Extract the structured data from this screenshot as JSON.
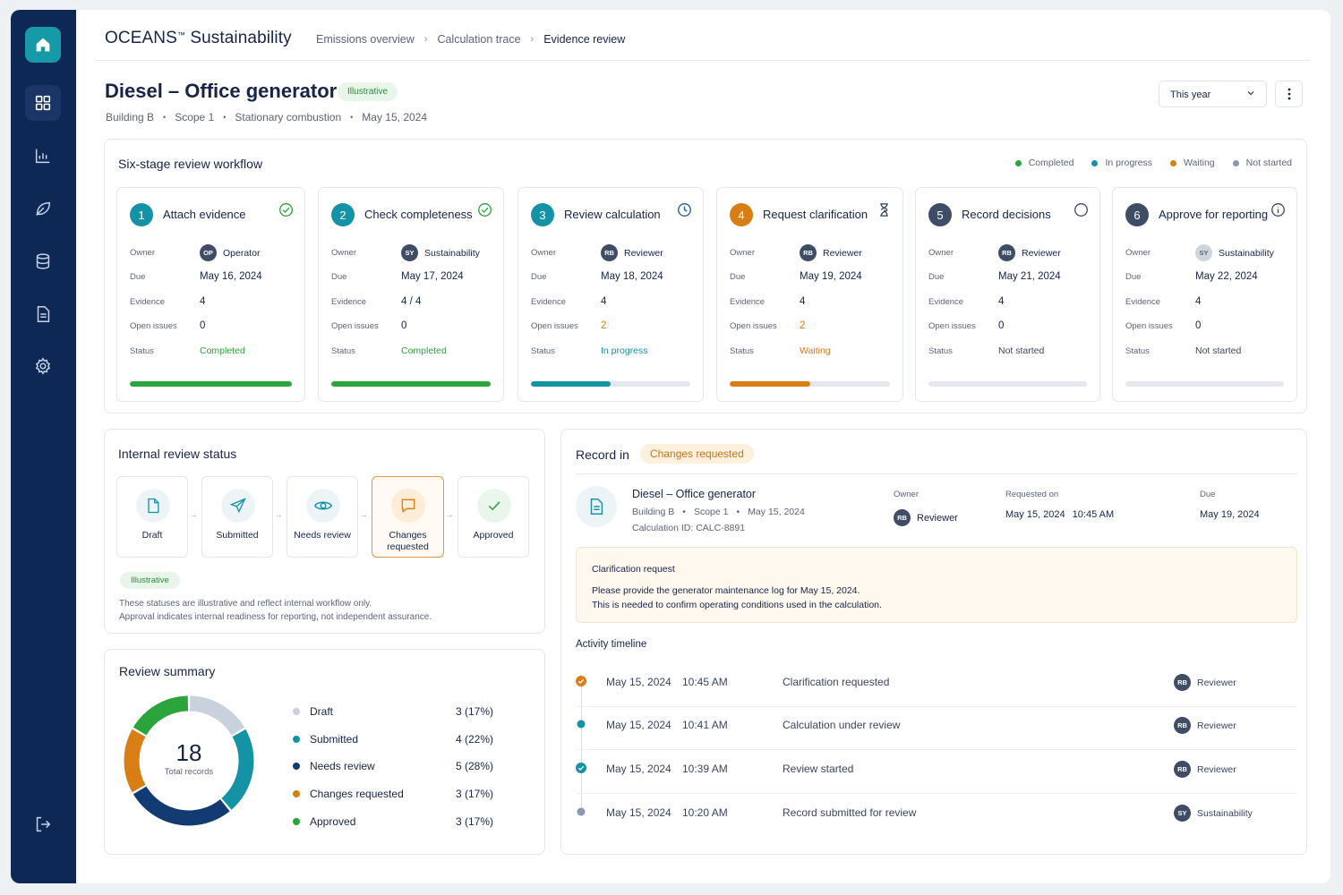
{
  "colors": {
    "completed": "#2ba43b",
    "in_progress": "#1493a6",
    "waiting": "#d97e14",
    "not_started": "#8b97ad",
    "navy": "#0e2856"
  },
  "sidebar": {
    "items": [
      {
        "icon": "home-icon"
      },
      {
        "icon": "grid-icon"
      },
      {
        "icon": "chart-icon"
      },
      {
        "icon": "leaf-icon"
      },
      {
        "icon": "database-icon"
      },
      {
        "icon": "document-icon"
      },
      {
        "icon": "gear-icon"
      },
      {
        "icon": "logout-icon"
      }
    ]
  },
  "header": {
    "brand": "OCEANS",
    "brand_tm": "™",
    "brand_suffix": " Sustainability",
    "breadcrumbs": [
      "Emissions overview",
      "Calculation trace",
      "Evidence review"
    ]
  },
  "page": {
    "title": "Diesel – Office generator",
    "badge": "Illustrative",
    "meta": [
      "Building B",
      "Scope 1",
      "Stationary combustion",
      "May 15, 2024"
    ],
    "period": "This year"
  },
  "workflow": {
    "title": "Six-stage review workflow",
    "legend": [
      {
        "label": "Completed",
        "color": "#2ba43b"
      },
      {
        "label": "In progress",
        "color": "#1493a6"
      },
      {
        "label": "Waiting",
        "color": "#d97e14"
      },
      {
        "label": "Not started",
        "color": "#8b97ad"
      }
    ],
    "field_labels": {
      "owner": "Owner",
      "due": "Due",
      "evidence": "Evidence",
      "issues": "Open issues",
      "status": "Status"
    },
    "stages": [
      {
        "num": "1",
        "name": "Attach evidence",
        "owner_initials": "OP",
        "owner": "Operator",
        "due": "May 16, 2024",
        "evidence": "4",
        "issues": "0",
        "status": "Completed",
        "progress": 1.0
      },
      {
        "num": "2",
        "name": "Check completeness",
        "owner_initials": "SY",
        "owner": "Sustainability",
        "due": "May 17, 2024",
        "evidence": "4 / 4",
        "issues": "0",
        "status": "Completed",
        "progress": 1.0
      },
      {
        "num": "3",
        "name": "Review calculation",
        "owner_initials": "RB",
        "owner": "Reviewer",
        "due": "May 18, 2024",
        "evidence": "4",
        "issues": "2",
        "status": "In progress",
        "progress": 0.5
      },
      {
        "num": "4",
        "name": "Request clarification",
        "owner_initials": "RB",
        "owner": "Reviewer",
        "due": "May 19, 2024",
        "evidence": "4",
        "issues": "2",
        "status": "Waiting",
        "progress": 0.5
      },
      {
        "num": "5",
        "name": "Record decisions",
        "owner_initials": "RB",
        "owner": "Reviewer",
        "due": "May 21, 2024",
        "evidence": "4",
        "issues": "0",
        "status": "Not started",
        "progress": 0
      },
      {
        "num": "6",
        "name": "Approve for reporting",
        "owner_initials": "SY",
        "owner": "Sustainability",
        "due": "May 22, 2024",
        "evidence": "4",
        "issues": "0",
        "status": "Not started",
        "progress": 0
      }
    ]
  },
  "internal_review": {
    "title": "Internal review status",
    "steps": [
      "Draft",
      "Submitted",
      "Needs review",
      "Changes requested",
      "Approved"
    ],
    "badge": "Illustrative",
    "note_line1": "These statuses are illustrative and reflect internal workflow only.",
    "note_line2": "Approval indicates internal readiness for reporting, not independent assurance."
  },
  "review_summary": {
    "title": "Review summary",
    "total": "18",
    "total_label": "Total records",
    "rows": [
      {
        "label": "Draft",
        "value": "3 (17%)",
        "count": 3,
        "color": "#c9d1dc"
      },
      {
        "label": "Submitted",
        "value": "4 (22%)",
        "count": 4,
        "color": "#1493a6"
      },
      {
        "label": "Needs review",
        "value": "5 (28%)",
        "count": 5,
        "color": "#123b73"
      },
      {
        "label": "Changes requested",
        "value": "3 (17%)",
        "count": 3,
        "color": "#d97e14"
      },
      {
        "label": "Approved",
        "value": "3 (17%)",
        "count": 3,
        "color": "#2ba43b"
      }
    ]
  },
  "record": {
    "title": "Record in",
    "status_badge": "Changes requested",
    "name": "Diesel – Office generator",
    "meta": [
      "Building B",
      "Scope 1",
      "May 15, 2024"
    ],
    "calc_id": "Calculation ID: CALC-8891",
    "owner_label": "Owner",
    "owner_initials": "RB",
    "owner": "Reviewer",
    "requested_label": "Requested on",
    "requested_date": "May 15, 2024",
    "requested_time": "10:45 AM",
    "due_label": "Due",
    "due": "May 19, 2024",
    "clarification": {
      "heading": "Clarification request",
      "line1": "Please provide the generator maintenance log for May 15, 2024.",
      "line2": "This is needed to confirm operating conditions used in the calculation."
    },
    "timeline_title": "Activity timeline",
    "timeline": [
      {
        "date": "May 15, 2024",
        "time": "10:45 AM",
        "event": "Clarification requested",
        "initials": "RB",
        "who": "Reviewer",
        "state": "waiting"
      },
      {
        "date": "May 15, 2024",
        "time": "10:41 AM",
        "event": "Calculation under review",
        "initials": "RB",
        "who": "Reviewer",
        "state": "progress"
      },
      {
        "date": "May 15, 2024",
        "time": "10:39 AM",
        "event": "Review started",
        "initials": "RB",
        "who": "Reviewer",
        "state": "done"
      },
      {
        "date": "May 15, 2024",
        "time": "10:20 AM",
        "event": "Record submitted for review",
        "initials": "SY",
        "who": "Sustainability",
        "state": "pending"
      }
    ]
  }
}
